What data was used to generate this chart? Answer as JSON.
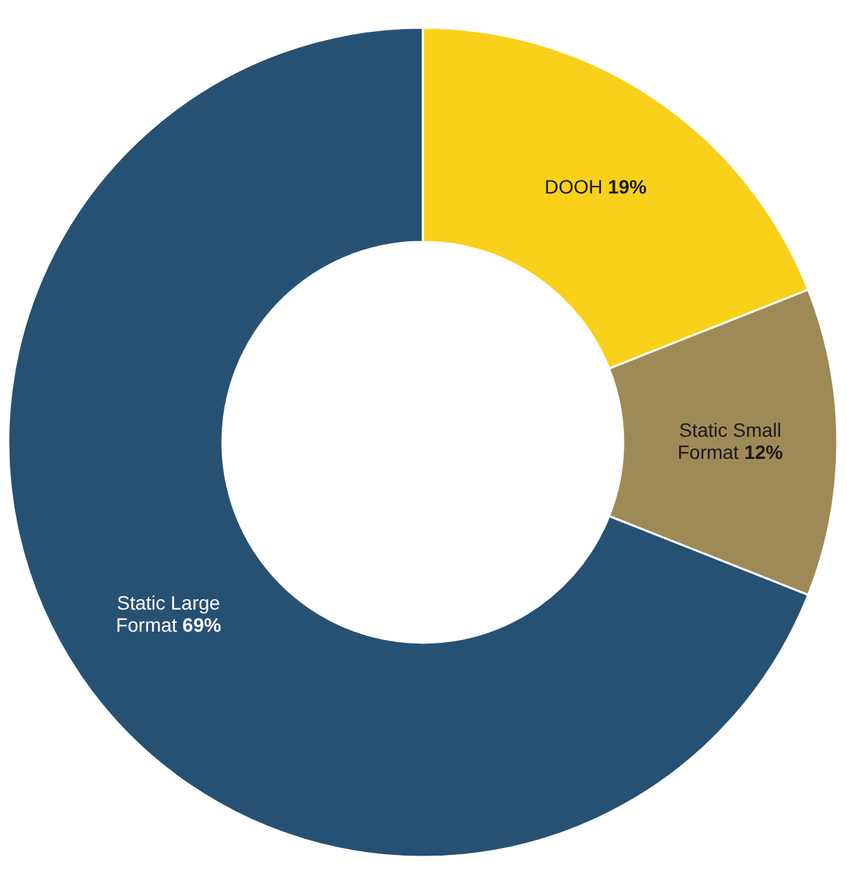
{
  "chart_data": {
    "type": "donut",
    "categories": [
      "DOOH",
      "Static Small Format",
      "Static Large Format"
    ],
    "values": [
      19,
      12,
      69
    ],
    "value_labels": [
      "19%",
      "12%",
      "69%"
    ],
    "colors": [
      "#f9d01a",
      "#9e8a56",
      "#275173"
    ]
  }
}
